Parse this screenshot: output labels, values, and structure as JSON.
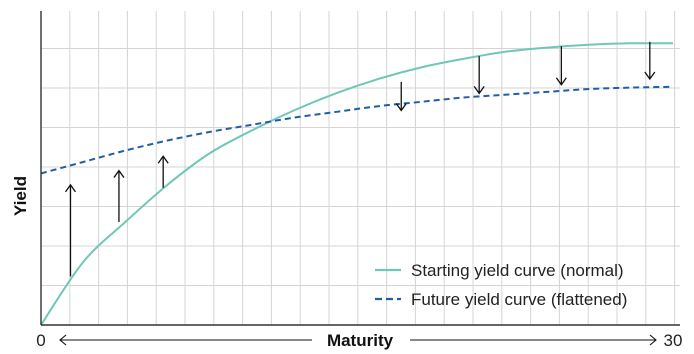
{
  "chart_data": {
    "type": "line",
    "xlabel": "Maturity",
    "ylabel": "Yield",
    "x_tick_labels": [
      "0",
      "30"
    ],
    "xlim": [
      0,
      30
    ],
    "ylim": [
      0,
      100
    ],
    "grid": true,
    "legend_position": "bottom-right",
    "series": [
      {
        "name": "Starting yield curve (normal)",
        "color": "#6fc7b7",
        "line_style": "solid",
        "x": [
          0,
          2,
          4,
          6,
          8,
          10,
          12,
          14,
          16,
          18,
          20,
          22,
          24,
          26,
          28,
          30
        ],
        "y": [
          0,
          22,
          36,
          49,
          60,
          68,
          75,
          81,
          86,
          90,
          93,
          95.5,
          97,
          98,
          98.5,
          98.5
        ]
      },
      {
        "name": "Future yield curve (flattened)",
        "color": "#1f5fa8",
        "line_style": "dashed",
        "x": [
          0,
          2,
          4,
          6,
          8,
          10,
          12,
          14,
          16,
          18,
          20,
          22,
          24,
          26,
          28,
          30
        ],
        "y": [
          53,
          57,
          61,
          64.5,
          67.5,
          70,
          72.5,
          74.5,
          76.5,
          78,
          79.5,
          80.5,
          81.5,
          82.5,
          83,
          83.3
        ]
      }
    ],
    "shift_arrows": [
      {
        "x": 1.4,
        "from": 17,
        "to": 49,
        "direction": "up"
      },
      {
        "x": 3.7,
        "from": 36,
        "to": 54,
        "direction": "up"
      },
      {
        "x": 5.8,
        "from": 48,
        "to": 59,
        "direction": "up"
      },
      {
        "x": 17.1,
        "from": 85,
        "to": 75,
        "direction": "down"
      },
      {
        "x": 20.8,
        "from": 94,
        "to": 81,
        "direction": "down"
      },
      {
        "x": 24.7,
        "from": 97.5,
        "to": 84,
        "direction": "down"
      },
      {
        "x": 28.9,
        "from": 99,
        "to": 86,
        "direction": "down"
      }
    ]
  }
}
